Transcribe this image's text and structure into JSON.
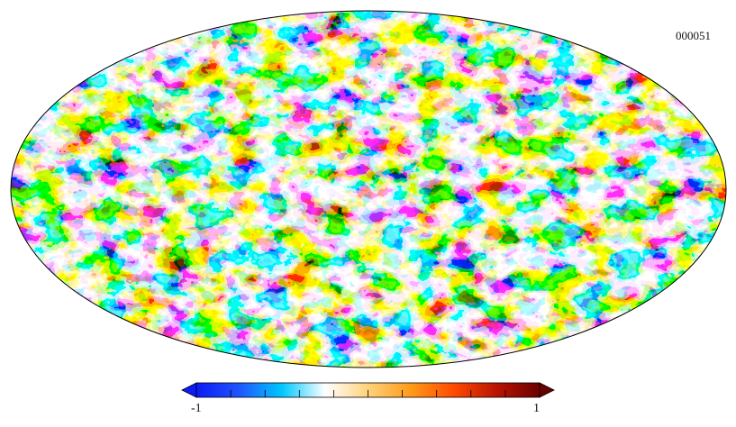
{
  "map": {
    "identifier": "000051",
    "projection": "mollweide",
    "field_description_visible": false
  },
  "colorbar": {
    "min_label": "-1",
    "max_label": "1",
    "min_value": -1,
    "max_value": 1,
    "tick_count": 10,
    "extend": "both",
    "stops": [
      "#0d1cf5",
      "#1f55ff",
      "#00c8ff",
      "#ffffff",
      "#ffd27a",
      "#ff9a1a",
      "#ff4a00",
      "#b81400",
      "#6b0000"
    ]
  },
  "colors": {
    "low": "#0b2cff",
    "mid": "#ffffff",
    "high": "#7a0600",
    "outline": "#000000"
  }
}
